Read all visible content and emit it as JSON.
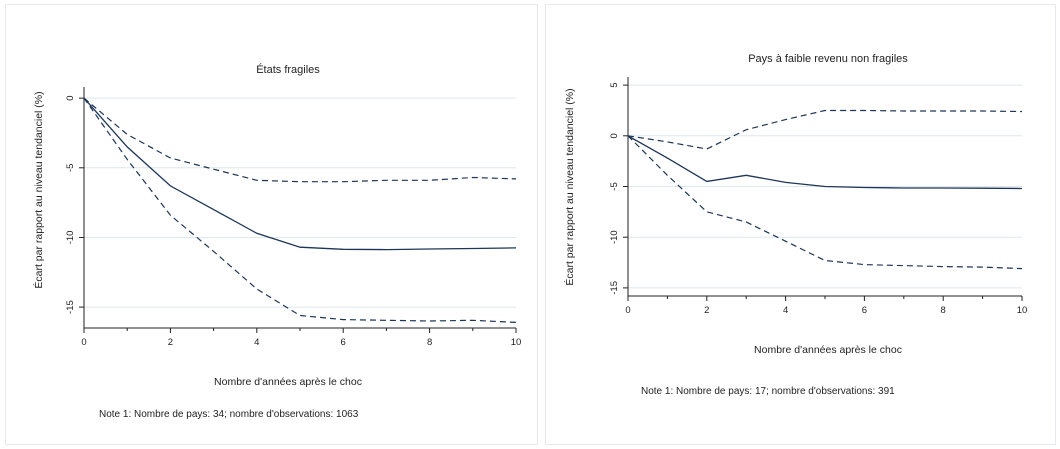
{
  "chart_data": [
    {
      "type": "line",
      "title": "États fragiles",
      "xlabel": "Nombre d'années après le choc",
      "ylabel": "Écart par rapport au niveau tendanciel  (%)",
      "note": "Note 1: Nombre de pays: 34; nombre d'observations:  1063",
      "xlim": [
        0,
        10
      ],
      "ylim": [
        -16.5,
        0.8
      ],
      "xticks": [
        0,
        2,
        4,
        6,
        8,
        10
      ],
      "yticks": [
        0,
        -5,
        -10,
        -15
      ],
      "grid": true,
      "series": [
        {
          "role": "estimate",
          "style": "solid",
          "points": [
            [
              0,
              0
            ],
            [
              1,
              -3.5
            ],
            [
              2,
              -6.3
            ],
            [
              3,
              -8
            ],
            [
              4,
              -9.7
            ],
            [
              5,
              -10.7
            ],
            [
              6,
              -10.85
            ],
            [
              7,
              -10.87
            ],
            [
              8,
              -10.83
            ],
            [
              9,
              -10.79
            ],
            [
              10,
              -10.75
            ]
          ]
        },
        {
          "role": "upper",
          "style": "dashed",
          "points": [
            [
              0,
              0
            ],
            [
              1,
              -2.6
            ],
            [
              2,
              -4.3
            ],
            [
              3,
              -5.1
            ],
            [
              4,
              -5.9
            ],
            [
              5,
              -6
            ],
            [
              6,
              -6
            ],
            [
              7,
              -5.9
            ],
            [
              8,
              -5.9
            ],
            [
              9,
              -5.7
            ],
            [
              10,
              -5.8
            ]
          ]
        },
        {
          "role": "lower",
          "style": "dashed",
          "points": [
            [
              0,
              0
            ],
            [
              1,
              -4.4
            ],
            [
              2,
              -8.4
            ],
            [
              3,
              -11
            ],
            [
              4,
              -13.7
            ],
            [
              5,
              -15.6
            ],
            [
              6,
              -15.9
            ],
            [
              7,
              -15.95
            ],
            [
              8,
              -16
            ],
            [
              9,
              -15.95
            ],
            [
              10,
              -16.1
            ]
          ]
        }
      ]
    },
    {
      "type": "line",
      "title": "Pays à faible revenu non fragiles",
      "xlabel": "Nombre d'années après le choc",
      "ylabel": "Écart par rapport au niveau tendanciel  (%)",
      "note": "Note 1: Nombre de pays: 17; nombre d'observations:  391",
      "xlim": [
        0,
        10
      ],
      "ylim": [
        -15.8,
        5.8
      ],
      "xticks": [
        0,
        2,
        4,
        6,
        8,
        10
      ],
      "yticks": [
        5,
        0,
        -5,
        -10,
        -15
      ],
      "grid": true,
      "series": [
        {
          "role": "estimate",
          "style": "solid",
          "points": [
            [
              0,
              0
            ],
            [
              1,
              -2.2
            ],
            [
              2,
              -4.5
            ],
            [
              3,
              -3.9
            ],
            [
              4,
              -4.6
            ],
            [
              5,
              -5
            ],
            [
              6,
              -5.1
            ],
            [
              7,
              -5.15
            ],
            [
              8,
              -5.15
            ],
            [
              9,
              -5.17
            ],
            [
              10,
              -5.2
            ]
          ]
        },
        {
          "role": "upper",
          "style": "dashed",
          "points": [
            [
              0,
              0
            ],
            [
              1,
              -0.6
            ],
            [
              2,
              -1.3
            ],
            [
              3,
              0.6
            ],
            [
              4,
              1.6
            ],
            [
              5,
              2.5
            ],
            [
              6,
              2.5
            ],
            [
              7,
              2.45
            ],
            [
              8,
              2.45
            ],
            [
              9,
              2.45
            ],
            [
              10,
              2.4
            ]
          ]
        },
        {
          "role": "lower",
          "style": "dashed",
          "points": [
            [
              0,
              0
            ],
            [
              1,
              -3.9
            ],
            [
              2,
              -7.5
            ],
            [
              3,
              -8.5
            ],
            [
              4,
              -10.4
            ],
            [
              5,
              -12.3
            ],
            [
              6,
              -12.7
            ],
            [
              7,
              -12.8
            ],
            [
              8,
              -12.9
            ],
            [
              9,
              -12.95
            ],
            [
              10,
              -13.1
            ]
          ]
        }
      ]
    }
  ]
}
